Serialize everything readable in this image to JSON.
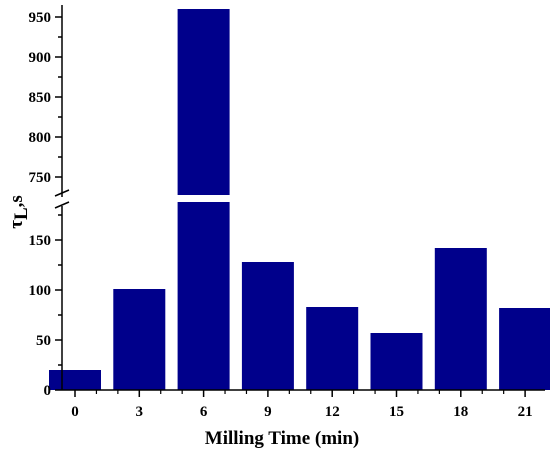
{
  "chart_data": {
    "type": "bar",
    "xlabel": "Milling Time (min)",
    "ylabel": {
      "symbol": "τ",
      "subscript": "L",
      "unit": ",s"
    },
    "categories": [
      "0",
      "3",
      "6",
      "9",
      "12",
      "15",
      "18",
      "21"
    ],
    "values": [
      20,
      101,
      960,
      128,
      83,
      57,
      142,
      82
    ],
    "x_ticks": [
      0,
      3,
      6,
      9,
      12,
      15,
      18,
      21
    ],
    "broken_y_axis": true,
    "y_lower_segment": {
      "range": [
        0,
        190
      ],
      "ticks": [
        0,
        50,
        100,
        150
      ]
    },
    "y_upper_segment": {
      "range": [
        725,
        965
      ],
      "ticks": [
        750,
        800,
        850,
        900,
        950
      ]
    },
    "bar_color": "#00008B",
    "grid": false
  }
}
